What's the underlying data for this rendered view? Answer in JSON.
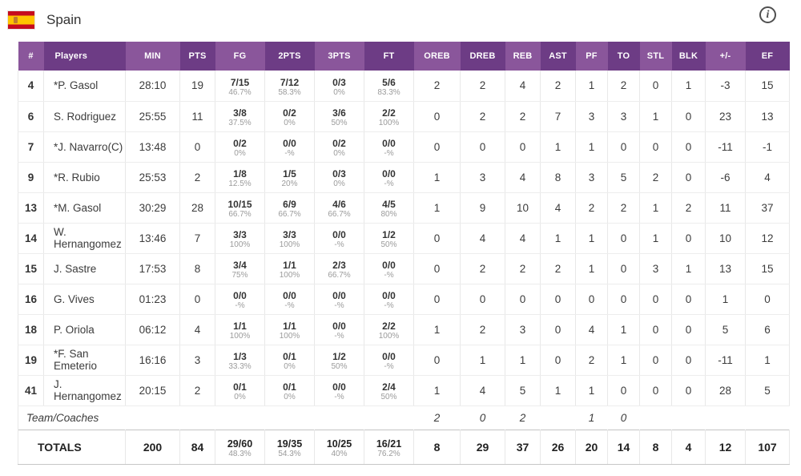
{
  "header": {
    "team_name": "Spain",
    "flag_icon": "spain-flag",
    "info_icon": "info"
  },
  "table": {
    "columns": [
      "#",
      "Players",
      "MIN",
      "PTS",
      "FG",
      "2PTS",
      "3PTS",
      "FT",
      "OREB",
      "DREB",
      "REB",
      "AST",
      "PF",
      "TO",
      "STL",
      "BLK",
      "+/-",
      "EF"
    ],
    "players": [
      {
        "num": "4",
        "name": "*P. Gasol",
        "min": "28:10",
        "pts": "19",
        "fg": "7/15",
        "fg_pct": "46.7%",
        "p2": "7/12",
        "p2_pct": "58.3%",
        "p3": "0/3",
        "p3_pct": "0%",
        "ft": "5/6",
        "ft_pct": "83.3%",
        "oreb": "2",
        "dreb": "2",
        "reb": "4",
        "ast": "2",
        "pf": "1",
        "to": "2",
        "stl": "0",
        "blk": "1",
        "pm": "-3",
        "ef": "15"
      },
      {
        "num": "6",
        "name": "S. Rodriguez",
        "min": "25:55",
        "pts": "11",
        "fg": "3/8",
        "fg_pct": "37.5%",
        "p2": "0/2",
        "p2_pct": "0%",
        "p3": "3/6",
        "p3_pct": "50%",
        "ft": "2/2",
        "ft_pct": "100%",
        "oreb": "0",
        "dreb": "2",
        "reb": "2",
        "ast": "7",
        "pf": "3",
        "to": "3",
        "stl": "1",
        "blk": "0",
        "pm": "23",
        "ef": "13"
      },
      {
        "num": "7",
        "name": "*J. Navarro(C)",
        "min": "13:48",
        "pts": "0",
        "fg": "0/2",
        "fg_pct": "0%",
        "p2": "0/0",
        "p2_pct": "-%",
        "p3": "0/2",
        "p3_pct": "0%",
        "ft": "0/0",
        "ft_pct": "-%",
        "oreb": "0",
        "dreb": "0",
        "reb": "0",
        "ast": "1",
        "pf": "1",
        "to": "0",
        "stl": "0",
        "blk": "0",
        "pm": "-11",
        "ef": "-1"
      },
      {
        "num": "9",
        "name": "*R. Rubio",
        "min": "25:53",
        "pts": "2",
        "fg": "1/8",
        "fg_pct": "12.5%",
        "p2": "1/5",
        "p2_pct": "20%",
        "p3": "0/3",
        "p3_pct": "0%",
        "ft": "0/0",
        "ft_pct": "-%",
        "oreb": "1",
        "dreb": "3",
        "reb": "4",
        "ast": "8",
        "pf": "3",
        "to": "5",
        "stl": "2",
        "blk": "0",
        "pm": "-6",
        "ef": "4"
      },
      {
        "num": "13",
        "name": "*M. Gasol",
        "min": "30:29",
        "pts": "28",
        "fg": "10/15",
        "fg_pct": "66.7%",
        "p2": "6/9",
        "p2_pct": "66.7%",
        "p3": "4/6",
        "p3_pct": "66.7%",
        "ft": "4/5",
        "ft_pct": "80%",
        "oreb": "1",
        "dreb": "9",
        "reb": "10",
        "ast": "4",
        "pf": "2",
        "to": "2",
        "stl": "1",
        "blk": "2",
        "pm": "11",
        "ef": "37"
      },
      {
        "num": "14",
        "name": "W. Hernangomez",
        "min": "13:46",
        "pts": "7",
        "fg": "3/3",
        "fg_pct": "100%",
        "p2": "3/3",
        "p2_pct": "100%",
        "p3": "0/0",
        "p3_pct": "-%",
        "ft": "1/2",
        "ft_pct": "50%",
        "oreb": "0",
        "dreb": "4",
        "reb": "4",
        "ast": "1",
        "pf": "1",
        "to": "0",
        "stl": "1",
        "blk": "0",
        "pm": "10",
        "ef": "12"
      },
      {
        "num": "15",
        "name": "J. Sastre",
        "min": "17:53",
        "pts": "8",
        "fg": "3/4",
        "fg_pct": "75%",
        "p2": "1/1",
        "p2_pct": "100%",
        "p3": "2/3",
        "p3_pct": "66.7%",
        "ft": "0/0",
        "ft_pct": "-%",
        "oreb": "0",
        "dreb": "2",
        "reb": "2",
        "ast": "2",
        "pf": "1",
        "to": "0",
        "stl": "3",
        "blk": "1",
        "pm": "13",
        "ef": "15"
      },
      {
        "num": "16",
        "name": "G. Vives",
        "min": "01:23",
        "pts": "0",
        "fg": "0/0",
        "fg_pct": "-%",
        "p2": "0/0",
        "p2_pct": "-%",
        "p3": "0/0",
        "p3_pct": "-%",
        "ft": "0/0",
        "ft_pct": "-%",
        "oreb": "0",
        "dreb": "0",
        "reb": "0",
        "ast": "0",
        "pf": "0",
        "to": "0",
        "stl": "0",
        "blk": "0",
        "pm": "1",
        "ef": "0"
      },
      {
        "num": "18",
        "name": "P. Oriola",
        "min": "06:12",
        "pts": "4",
        "fg": "1/1",
        "fg_pct": "100%",
        "p2": "1/1",
        "p2_pct": "100%",
        "p3": "0/0",
        "p3_pct": "-%",
        "ft": "2/2",
        "ft_pct": "100%",
        "oreb": "1",
        "dreb": "2",
        "reb": "3",
        "ast": "0",
        "pf": "4",
        "to": "1",
        "stl": "0",
        "blk": "0",
        "pm": "5",
        "ef": "6"
      },
      {
        "num": "19",
        "name": "*F. San Emeterio",
        "min": "16:16",
        "pts": "3",
        "fg": "1/3",
        "fg_pct": "33.3%",
        "p2": "0/1",
        "p2_pct": "0%",
        "p3": "1/2",
        "p3_pct": "50%",
        "ft": "0/0",
        "ft_pct": "-%",
        "oreb": "0",
        "dreb": "1",
        "reb": "1",
        "ast": "0",
        "pf": "2",
        "to": "1",
        "stl": "0",
        "blk": "0",
        "pm": "-11",
        "ef": "1"
      },
      {
        "num": "41",
        "name": "J. Hernangomez",
        "min": "20:15",
        "pts": "2",
        "fg": "0/1",
        "fg_pct": "0%",
        "p2": "0/1",
        "p2_pct": "0%",
        "p3": "0/0",
        "p3_pct": "-%",
        "ft": "2/4",
        "ft_pct": "50%",
        "oreb": "1",
        "dreb": "4",
        "reb": "5",
        "ast": "1",
        "pf": "1",
        "to": "0",
        "stl": "0",
        "blk": "0",
        "pm": "28",
        "ef": "5"
      }
    ],
    "team_coaches": {
      "label": "Team/Coaches",
      "oreb": "2",
      "dreb": "0",
      "reb": "2",
      "ast": "",
      "pf": "1",
      "to": "0",
      "stl": "",
      "blk": "",
      "pm": "",
      "ef": ""
    },
    "totals": {
      "label": "TOTALS",
      "min": "200",
      "pts": "84",
      "fg": "29/60",
      "fg_pct": "48.3%",
      "p2": "19/35",
      "p2_pct": "54.3%",
      "p3": "10/25",
      "p3_pct": "40%",
      "ft": "16/21",
      "ft_pct": "76.2%",
      "oreb": "8",
      "dreb": "29",
      "reb": "37",
      "ast": "26",
      "pf": "20",
      "to": "14",
      "stl": "8",
      "blk": "4",
      "pm": "12",
      "ef": "107"
    }
  },
  "colors": {
    "header_purple_light": "#8a569b",
    "header_purple_dark": "#6d3c85",
    "flag_red": "#c60b1e",
    "flag_yellow": "#ffc400",
    "grid_line": "#e8e8e8",
    "totals_border": "#c4c4c4",
    "pct_text": "#9b9b9b"
  }
}
